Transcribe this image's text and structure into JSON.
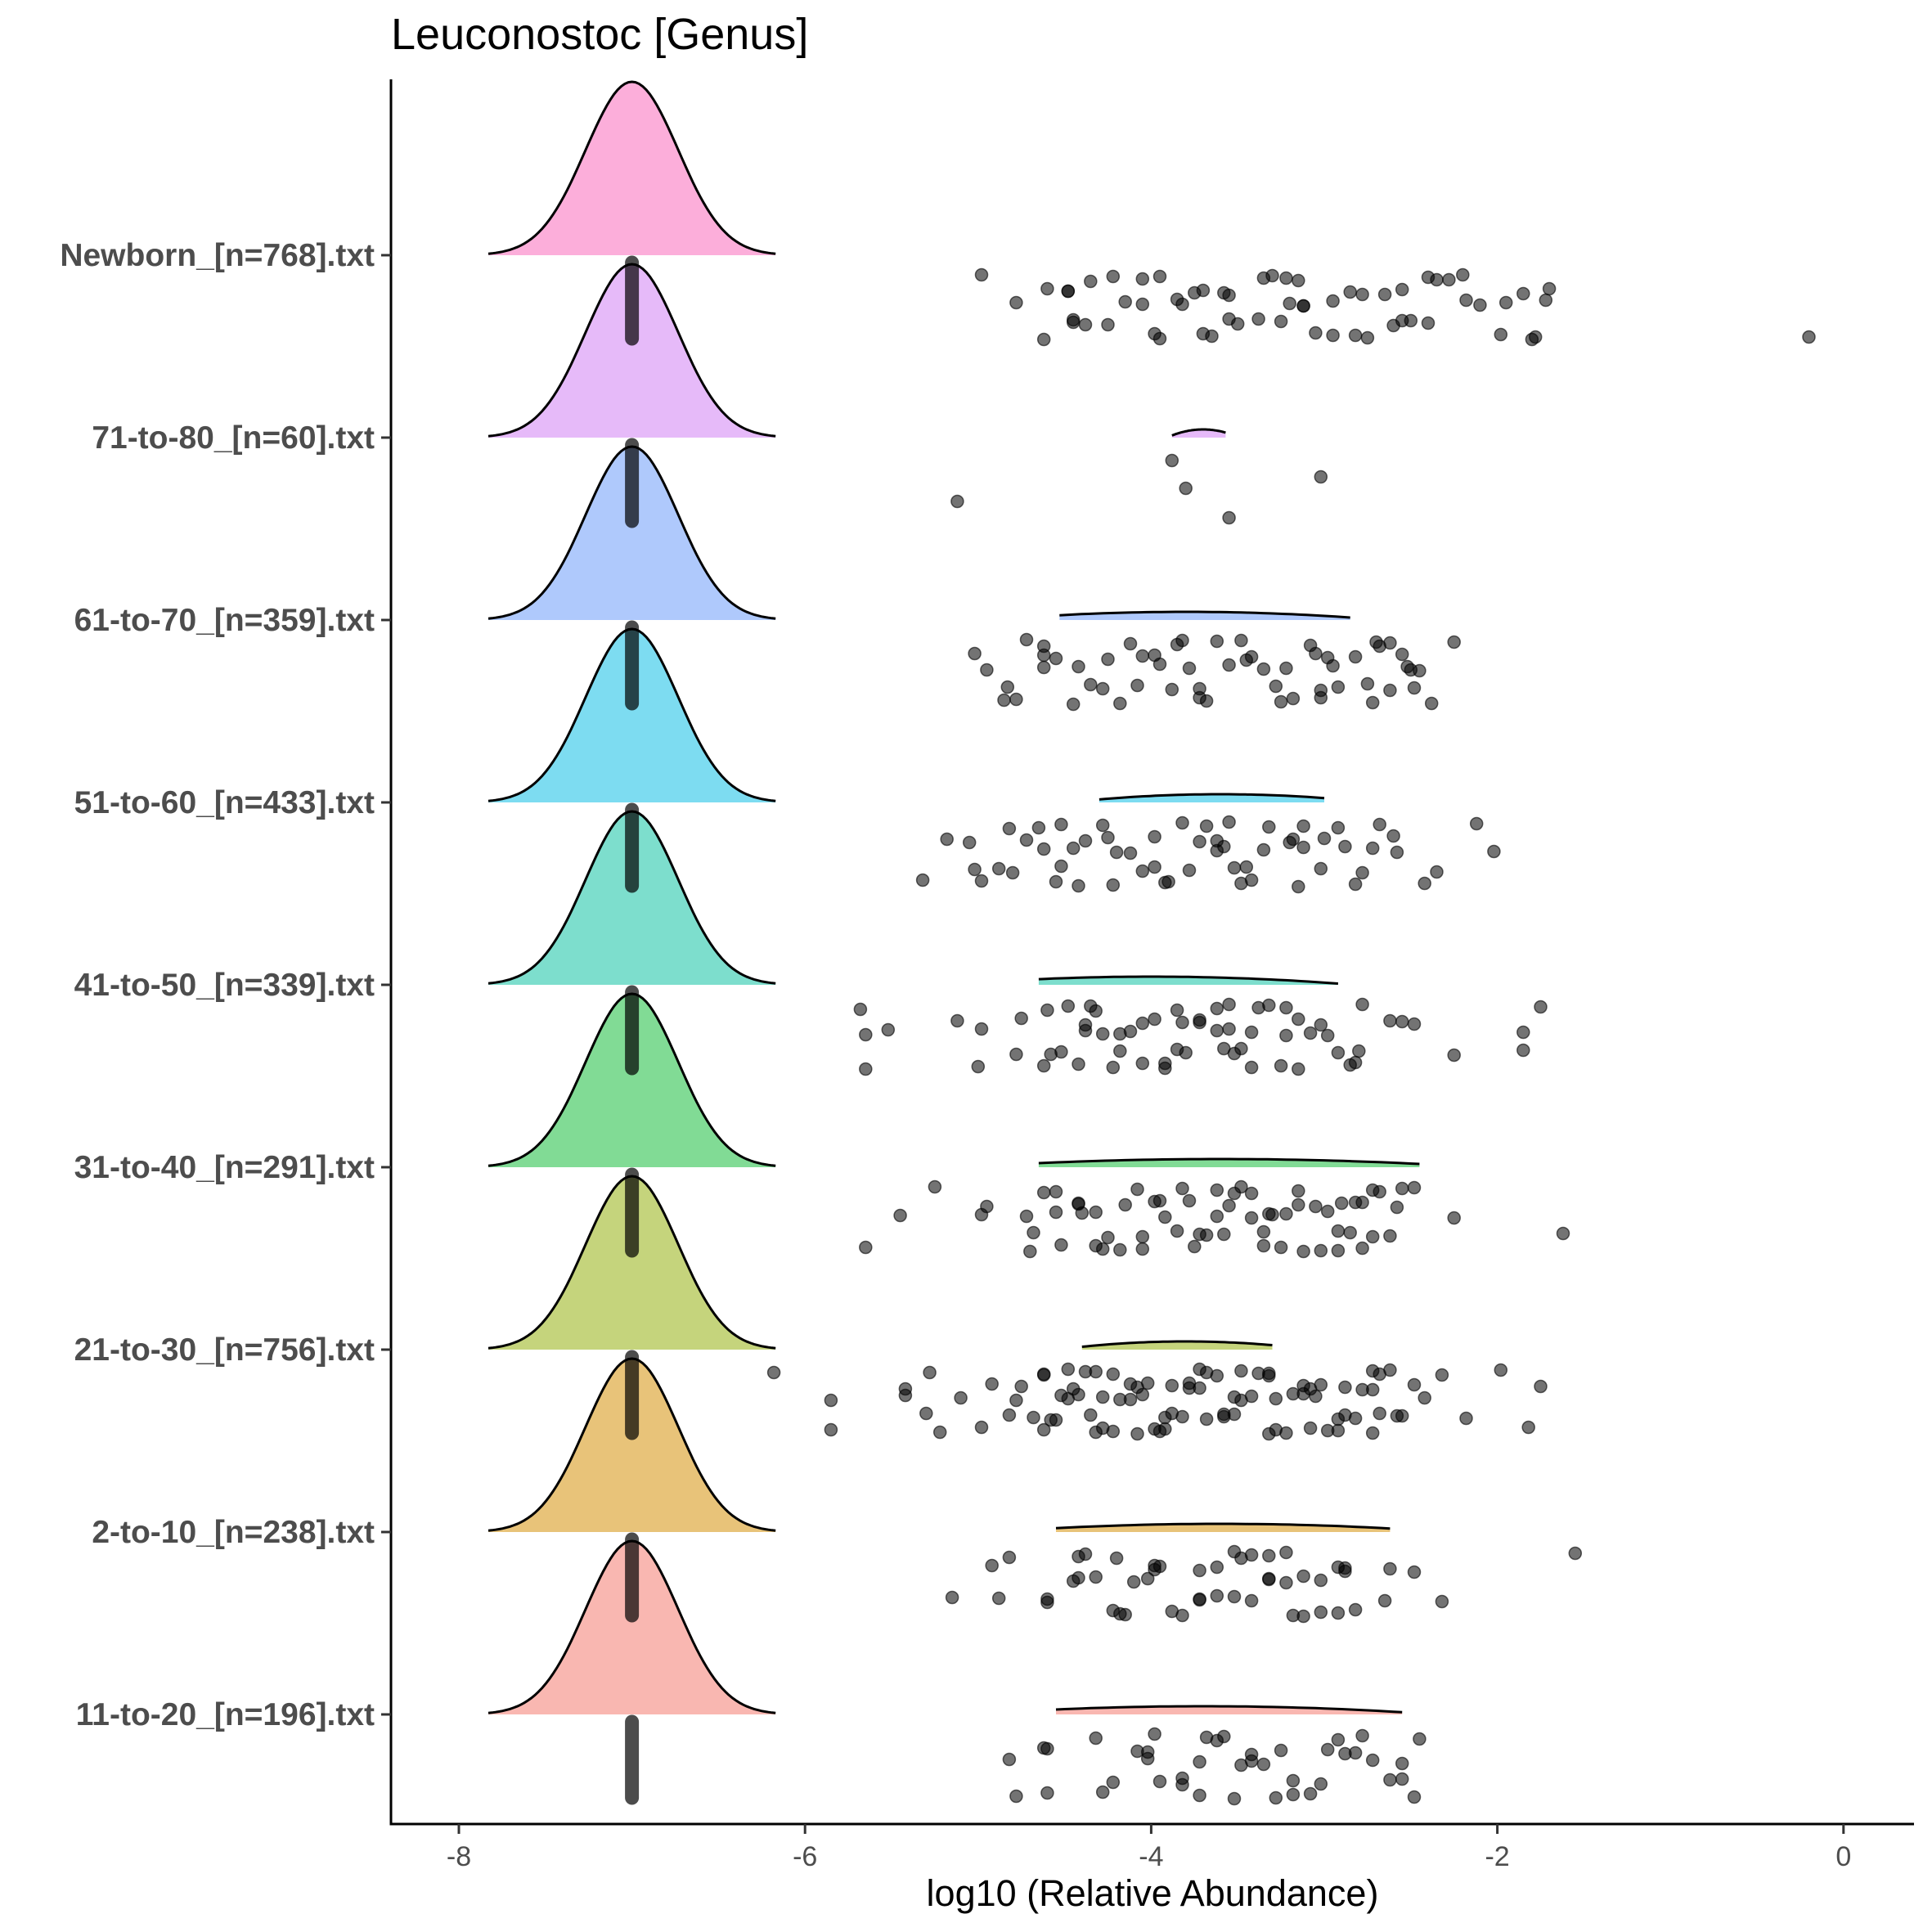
{
  "chart_data": {
    "type": "raincloud",
    "title": "Leuconostoc [Genus]",
    "xlabel": "log10 (Relative Abundance)",
    "ylabel": "",
    "xlim": [
      -8.4,
      0.4
    ],
    "xticks": [
      -8,
      -6,
      -4,
      -2,
      0
    ],
    "xtick_labels": [
      "-8",
      "-6",
      "-4",
      "-2",
      "0"
    ],
    "grid": false,
    "legend": "none",
    "categories": [
      "Newborn_[n=768].txt",
      "71-to-80_[n=60].txt",
      "61-to-70_[n=359].txt",
      "51-to-60_[n=433].txt",
      "41-to-50_[n=339].txt",
      "31-to-40_[n=291].txt",
      "21-to-30_[n=756].txt",
      "2-to-10_[n=238].txt",
      "11-to-20_[n=196].txt"
    ],
    "series": [
      {
        "category": "Newborn_[n=768].txt",
        "color": "#FB9AD1",
        "main_density": {
          "center": -7.0,
          "from": -7.83,
          "to": -6.17
        },
        "median": -7.0,
        "secondary_density": null,
        "points": [
          -4.98,
          -4.78,
          -4.62,
          -4.48,
          -4.38,
          -4.22,
          -4.05,
          -3.98,
          -3.75,
          -3.55,
          -3.35,
          -3.12,
          -2.95,
          -2.78,
          -2.55,
          -2.35,
          -1.72,
          -0.2,
          -4.6,
          -4.45,
          -4.35,
          -4.15,
          -3.95,
          -3.7,
          -3.5,
          -3.3,
          -3.2,
          -3.05,
          -2.85,
          -2.6,
          -2.4,
          -2.1,
          -1.98,
          -1.85,
          -4.45,
          -4.05,
          -3.85,
          -3.65,
          -3.55,
          -3.25,
          -3.15,
          -2.95,
          -2.75,
          -2.55,
          -2.4,
          -2.2,
          -1.95,
          -1.8,
          -4.48,
          -4.25,
          -3.95,
          -3.82,
          -3.7,
          -3.58,
          -3.38,
          -3.22,
          -3.12,
          -2.82,
          -2.65,
          -2.5,
          -2.28,
          -2.18,
          -1.78,
          -1.7
        ]
      },
      {
        "category": "71-to-80_[n=60].txt",
        "color": "#E0A9F7",
        "main_density": {
          "center": -7.0,
          "from": -7.83,
          "to": -6.17
        },
        "median": -7.0,
        "secondary_density": {
          "from": -3.88,
          "to": -3.57,
          "peak": -3.7
        },
        "points": [
          -5.12,
          -3.88,
          -3.8,
          -3.55,
          -3.02
        ]
      },
      {
        "category": "61-to-70_[n=359].txt",
        "color": "#9BBCFB",
        "main_density": {
          "center": -7.0,
          "from": -7.83,
          "to": -6.17
        },
        "median": -7.0,
        "secondary_density": {
          "from": -4.53,
          "to": -2.85,
          "peak": -3.8
        },
        "points": [
          -5.02,
          -4.83,
          -4.62,
          -4.42,
          -4.18,
          -3.98,
          -3.72,
          -3.48,
          -3.22,
          -3.02,
          -2.82,
          -2.62,
          -2.25,
          -4.95,
          -4.78,
          -4.55,
          -4.35,
          -4.12,
          -3.95,
          -3.68,
          -3.45,
          -3.28,
          -3.08,
          -2.95,
          -2.72,
          -2.55,
          -2.48,
          -4.72,
          -4.62,
          -4.45,
          -4.05,
          -3.88,
          -3.62,
          -3.35,
          -3.18,
          -2.98,
          -2.75,
          -2.62,
          -2.45,
          -4.85,
          -4.25,
          -4.08,
          -3.85,
          -3.55,
          -3.25,
          -3.05,
          -2.92,
          -2.68,
          -2.52,
          -2.38,
          -4.62,
          -4.28,
          -3.82,
          -3.78,
          -3.72,
          -3.42,
          -3.02,
          -2.7,
          -2.5
        ]
      },
      {
        "category": "51-to-60_[n=433].txt",
        "color": "#5DD3EE",
        "main_density": {
          "center": -7.0,
          "from": -7.83,
          "to": -6.17
        },
        "median": -7.0,
        "secondary_density": {
          "from": -4.3,
          "to": -3.0,
          "peak": -3.6
        },
        "points": [
          -5.32,
          -5.18,
          -4.8,
          -4.52,
          -4.2,
          -3.9,
          -3.62,
          -3.45,
          -3.12,
          -2.88,
          -2.42,
          -5.05,
          -4.88,
          -4.65,
          -4.45,
          -4.22,
          -3.98,
          -3.78,
          -3.55,
          -3.35,
          -3.15,
          -3.0,
          -2.35,
          -2.12,
          -2.02,
          -4.98,
          -4.72,
          -4.52,
          -4.28,
          -4.12,
          -3.92,
          -3.72,
          -3.52,
          -3.32,
          -3.12,
          -2.82,
          -2.6,
          -5.02,
          -4.82,
          -4.62,
          -4.42,
          -4.25,
          -4.05,
          -3.82,
          -3.62,
          -3.42,
          -3.18,
          -2.78,
          -2.68,
          -2.58,
          -4.55,
          -4.38,
          -3.98,
          -3.68,
          -3.58,
          -3.48,
          -3.2,
          -3.02,
          -2.92,
          -2.72
        ]
      },
      {
        "category": "41-to-50_[n=339].txt",
        "color": "#5DD6C0",
        "main_density": {
          "center": -7.0,
          "from": -7.83,
          "to": -6.17
        },
        "median": -7.0,
        "secondary_density": {
          "from": -4.65,
          "to": -2.92,
          "peak": -4.0
        },
        "points": [
          -4.98,
          -4.62,
          -4.38,
          -4.18,
          -3.85,
          -3.62,
          -3.42,
          -3.15,
          -2.92,
          -2.78,
          -1.85,
          -5.65,
          -5.12,
          -4.78,
          -4.48,
          -4.28,
          -4.05,
          -3.82,
          -3.58,
          -3.38,
          -3.22,
          -2.85,
          -2.48,
          -1.85,
          -5.68,
          -5.52,
          -5.0,
          -4.75,
          -4.52,
          -4.32,
          -4.12,
          -3.92,
          -3.72,
          -3.52,
          -3.32,
          -3.08,
          -2.82,
          -2.55,
          -2.25,
          -1.75,
          -5.65,
          -4.42,
          -4.05,
          -3.85,
          -3.62,
          -3.55,
          -3.25,
          -3.02,
          -2.8,
          -4.6,
          -4.38,
          -4.22,
          -3.98,
          -3.8,
          -3.55,
          -3.42,
          -3.15,
          -2.62,
          -4.58,
          -4.35,
          -4.18,
          -3.92,
          -3.72,
          -3.48,
          -3.22,
          -2.98
        ]
      },
      {
        "category": "31-to-40_[n=291].txt",
        "color": "#62D27B",
        "main_density": {
          "center": -7.0,
          "from": -7.83,
          "to": -6.17
        },
        "median": -7.0,
        "secondary_density": {
          "from": -4.65,
          "to": -2.45,
          "peak": -3.6
        },
        "points": [
          -5.25,
          -4.98,
          -4.7,
          -4.42,
          -4.05,
          -3.82,
          -3.62,
          -3.35,
          -3.15,
          -2.92,
          -2.72,
          -2.25,
          -5.65,
          -4.95,
          -4.68,
          -4.55,
          -4.32,
          -4.05,
          -3.78,
          -3.58,
          -3.42,
          -3.22,
          -3.02,
          -2.82,
          -2.62,
          -2.48,
          -5.45,
          -4.52,
          -4.42,
          -4.25,
          -4.08,
          -3.92,
          -3.75,
          -3.55,
          -3.35,
          -3.15,
          -2.98,
          -2.78,
          -2.58,
          -1.62,
          -4.62,
          -4.4,
          -4.18,
          -3.98,
          -3.68,
          -3.48,
          -3.3,
          -3.12,
          -2.9,
          -2.72,
          -2.55,
          -4.72,
          -4.32,
          -4.15,
          -3.85,
          -3.62,
          -3.42,
          -3.25,
          -3.05,
          -2.85,
          -2.68,
          -4.55,
          -4.28,
          -3.95,
          -3.72,
          -3.52,
          -3.32,
          -2.92,
          -2.78
        ]
      },
      {
        "category": "21-to-30_[n=756].txt",
        "color": "#B7C95B",
        "main_density": {
          "center": -7.0,
          "from": -7.83,
          "to": -6.17
        },
        "median": -7.0,
        "secondary_density": {
          "from": -4.4,
          "to": -3.3,
          "peak": -3.8
        },
        "points": [
          -5.3,
          -5.28,
          -4.78,
          -4.62,
          -4.45,
          -4.35,
          -4.22,
          -4.05,
          -3.95,
          -3.78,
          -3.58,
          -3.32,
          -3.05,
          -2.72,
          -2.48,
          -2.18,
          -1.98,
          -5.1,
          -4.98,
          -4.75,
          -4.55,
          -4.32,
          -4.12,
          -3.92,
          -3.72,
          -3.52,
          -3.32,
          -3.12,
          -2.92,
          -2.72,
          -2.55,
          -2.32,
          -5.42,
          -5.22,
          -4.92,
          -4.68,
          -4.48,
          -4.28,
          -4.08,
          -3.88,
          -3.68,
          -3.48,
          -3.28,
          -3.08,
          -2.88,
          -2.68,
          -6.18,
          -5.85,
          -5.85,
          -5.42,
          -4.82,
          -4.62,
          -4.42,
          -4.22,
          -4.02,
          -3.82,
          -3.62,
          -3.42,
          -3.22,
          -3.02,
          -2.82,
          -2.62,
          -2.42,
          -1.82,
          -1.75,
          -4.58,
          -4.38,
          -4.18,
          -3.98,
          -3.78,
          -3.58,
          -3.38,
          -3.18,
          -2.98,
          -2.78,
          -2.58,
          -4.62,
          -4.52,
          -4.32,
          -4.12,
          -3.92,
          -3.72,
          -3.52,
          -3.32,
          -3.12,
          -2.92,
          -2.72,
          -4.48,
          -4.28,
          -4.08,
          -3.88,
          -3.68,
          -3.48,
          -3.28,
          -3.08,
          -2.88,
          -2.68
        ]
      },
      {
        "category": "2-to-10_[n=238].txt",
        "color": "#E2B457",
        "main_density": {
          "center": -7.0,
          "from": -7.83,
          "to": -6.17
        },
        "median": -7.0,
        "secondary_density": {
          "from": -4.55,
          "to": -2.62,
          "peak": -3.6
        },
        "points": [
          -4.92,
          -4.6,
          -4.2,
          -4.02,
          -3.82,
          -3.62,
          -3.42,
          -3.22,
          -3.02,
          -2.82,
          -2.62,
          -4.6,
          -4.38,
          -4.1,
          -3.88,
          -3.72,
          -3.52,
          -3.32,
          -3.12,
          -2.92,
          -2.48,
          -4.88,
          -4.82,
          -4.42,
          -4.15,
          -3.95,
          -3.72,
          -3.52,
          -3.32,
          -3.12,
          -2.88,
          -2.32,
          -1.55,
          -4.45,
          -4.22,
          -3.98,
          -3.62,
          -3.42,
          -3.22,
          -3.02,
          -2.88,
          -5.15,
          -4.42,
          -4.32,
          -4.18,
          -3.98,
          -3.72,
          -3.48,
          -3.32,
          -3.18,
          -2.92,
          -2.65
        ]
      },
      {
        "category": "11-to-20_[n=196].txt",
        "color": "#F8A59E",
        "main_density": {
          "center": -7.0,
          "from": -7.83,
          "to": -6.17
        },
        "median": -7.0,
        "secondary_density": {
          "from": -4.55,
          "to": -2.55,
          "peak": -3.7
        },
        "points": [
          -4.28,
          -4.08,
          -3.82,
          -3.58,
          -3.35,
          -3.08,
          -2.82,
          -2.55,
          -4.32,
          -4.02,
          -3.72,
          -3.42,
          -3.18,
          -2.92,
          -2.72,
          -2.48,
          -4.6,
          -4.22,
          -3.98,
          -3.72,
          -3.52,
          -3.25,
          -3.02,
          -2.78,
          -2.55,
          -4.6,
          -4.02,
          -3.82,
          -3.68,
          -3.48,
          -3.18,
          -2.88,
          -2.62,
          -2.45,
          -4.82,
          -4.78,
          -4.62,
          -3.95,
          -3.62,
          -3.42,
          -3.28,
          -2.98
        ]
      }
    ]
  }
}
